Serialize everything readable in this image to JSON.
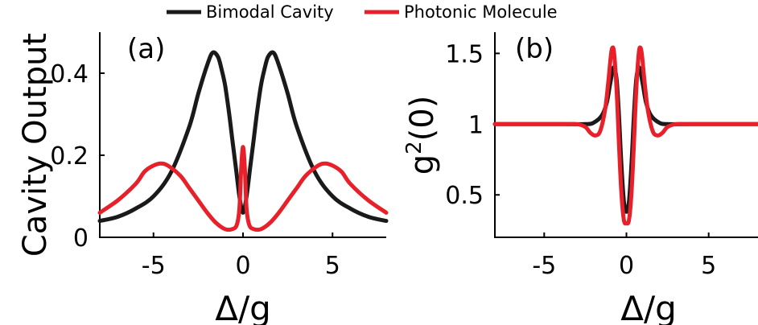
{
  "legend": [
    {
      "label": "Bimodal Cavity",
      "color": "#1a1a1a"
    },
    {
      "label": "Photonic Molecule",
      "color": "#e8202a"
    }
  ],
  "chart_data": [
    {
      "type": "line",
      "panel_label": "(a)",
      "xlabel": "Δ/g",
      "ylabel": "Cavity Output",
      "xlim": [
        -8,
        8
      ],
      "ylim": [
        0,
        0.5
      ],
      "xticks": [
        -5,
        0,
        5
      ],
      "xtick_labels": [
        "-5",
        "0",
        "5"
      ],
      "yticks": [
        0,
        0.2,
        0.4
      ],
      "ytick_labels": [
        "0",
        "0.2",
        "0.4"
      ],
      "series": [
        {
          "name": "Bimodal Cavity",
          "color": "#1a1a1a",
          "x": [
            -8,
            -7,
            -6,
            -5,
            -4,
            -3,
            -2.5,
            -2,
            -1.7,
            -1.4,
            -1.2,
            -1,
            -0.8,
            -0.6,
            -0.4,
            -0.2,
            0,
            0.2,
            0.4,
            0.6,
            0.8,
            1,
            1.2,
            1.4,
            1.7,
            2,
            2.5,
            3,
            4,
            5,
            6,
            7,
            8
          ],
          "y": [
            0.04,
            0.05,
            0.07,
            0.1,
            0.16,
            0.27,
            0.35,
            0.42,
            0.45,
            0.44,
            0.41,
            0.37,
            0.31,
            0.24,
            0.17,
            0.1,
            0.06,
            0.1,
            0.17,
            0.24,
            0.31,
            0.37,
            0.41,
            0.44,
            0.45,
            0.42,
            0.35,
            0.27,
            0.16,
            0.1,
            0.07,
            0.05,
            0.04
          ]
        },
        {
          "name": "Photonic Molecule",
          "color": "#e8202a",
          "x": [
            -8,
            -7,
            -6,
            -5.5,
            -5,
            -4.6,
            -4.2,
            -3.5,
            -3,
            -2.5,
            -2,
            -1.5,
            -1,
            -0.6,
            -0.35,
            -0.2,
            -0.1,
            0,
            0.1,
            0.2,
            0.35,
            0.6,
            1,
            1.5,
            2,
            2.5,
            3,
            3.5,
            4.2,
            4.6,
            5,
            5.5,
            6,
            7,
            8
          ],
          "y": [
            0.06,
            0.09,
            0.13,
            0.16,
            0.175,
            0.18,
            0.175,
            0.15,
            0.12,
            0.09,
            0.06,
            0.035,
            0.02,
            0.02,
            0.03,
            0.07,
            0.17,
            0.22,
            0.17,
            0.07,
            0.03,
            0.02,
            0.02,
            0.035,
            0.06,
            0.09,
            0.12,
            0.15,
            0.175,
            0.18,
            0.175,
            0.16,
            0.13,
            0.09,
            0.06
          ]
        }
      ]
    },
    {
      "type": "line",
      "panel_label": "(b)",
      "xlabel": "Δ/g",
      "ylabel": "g2(0)",
      "xlim": [
        -8,
        8
      ],
      "ylim": [
        0.2,
        1.65
      ],
      "xticks": [
        -5,
        0,
        5
      ],
      "xtick_labels": [
        "-5",
        "0",
        "5"
      ],
      "yticks": [
        0.5,
        1,
        1.5
      ],
      "ytick_labels": [
        "0.5",
        "1",
        "1.5"
      ],
      "series": [
        {
          "name": "Bimodal Cavity",
          "color": "#1a1a1a",
          "x": [
            -8,
            -4,
            -2.5,
            -2,
            -1.5,
            -1.2,
            -1,
            -0.85,
            -0.75,
            -0.6,
            -0.45,
            -0.3,
            -0.15,
            0,
            0.15,
            0.3,
            0.45,
            0.6,
            0.75,
            0.85,
            1,
            1.2,
            1.5,
            2,
            2.5,
            4,
            8
          ],
          "y": [
            1,
            1,
            1,
            1.01,
            1.06,
            1.15,
            1.28,
            1.37,
            1.4,
            1.32,
            1.05,
            0.7,
            0.45,
            0.38,
            0.45,
            0.7,
            1.05,
            1.32,
            1.4,
            1.37,
            1.28,
            1.15,
            1.06,
            1.01,
            1,
            1,
            1
          ]
        },
        {
          "name": "Photonic Molecule",
          "color": "#e8202a",
          "x": [
            -8,
            -4,
            -3,
            -2.5,
            -2.2,
            -1.9,
            -1.6,
            -1.3,
            -1.1,
            -0.95,
            -0.85,
            -0.75,
            -0.6,
            -0.45,
            -0.3,
            -0.15,
            0,
            0.15,
            0.3,
            0.45,
            0.6,
            0.75,
            0.85,
            0.95,
            1.1,
            1.3,
            1.6,
            1.9,
            2.2,
            2.5,
            3,
            4,
            8
          ],
          "y": [
            1,
            1,
            1,
            0.98,
            0.94,
            0.92,
            0.95,
            1.1,
            1.3,
            1.48,
            1.54,
            1.5,
            1.25,
            0.85,
            0.5,
            0.32,
            0.3,
            0.32,
            0.5,
            0.85,
            1.25,
            1.5,
            1.54,
            1.48,
            1.3,
            1.1,
            0.95,
            0.92,
            0.94,
            0.98,
            1,
            1,
            1
          ]
        }
      ]
    }
  ]
}
